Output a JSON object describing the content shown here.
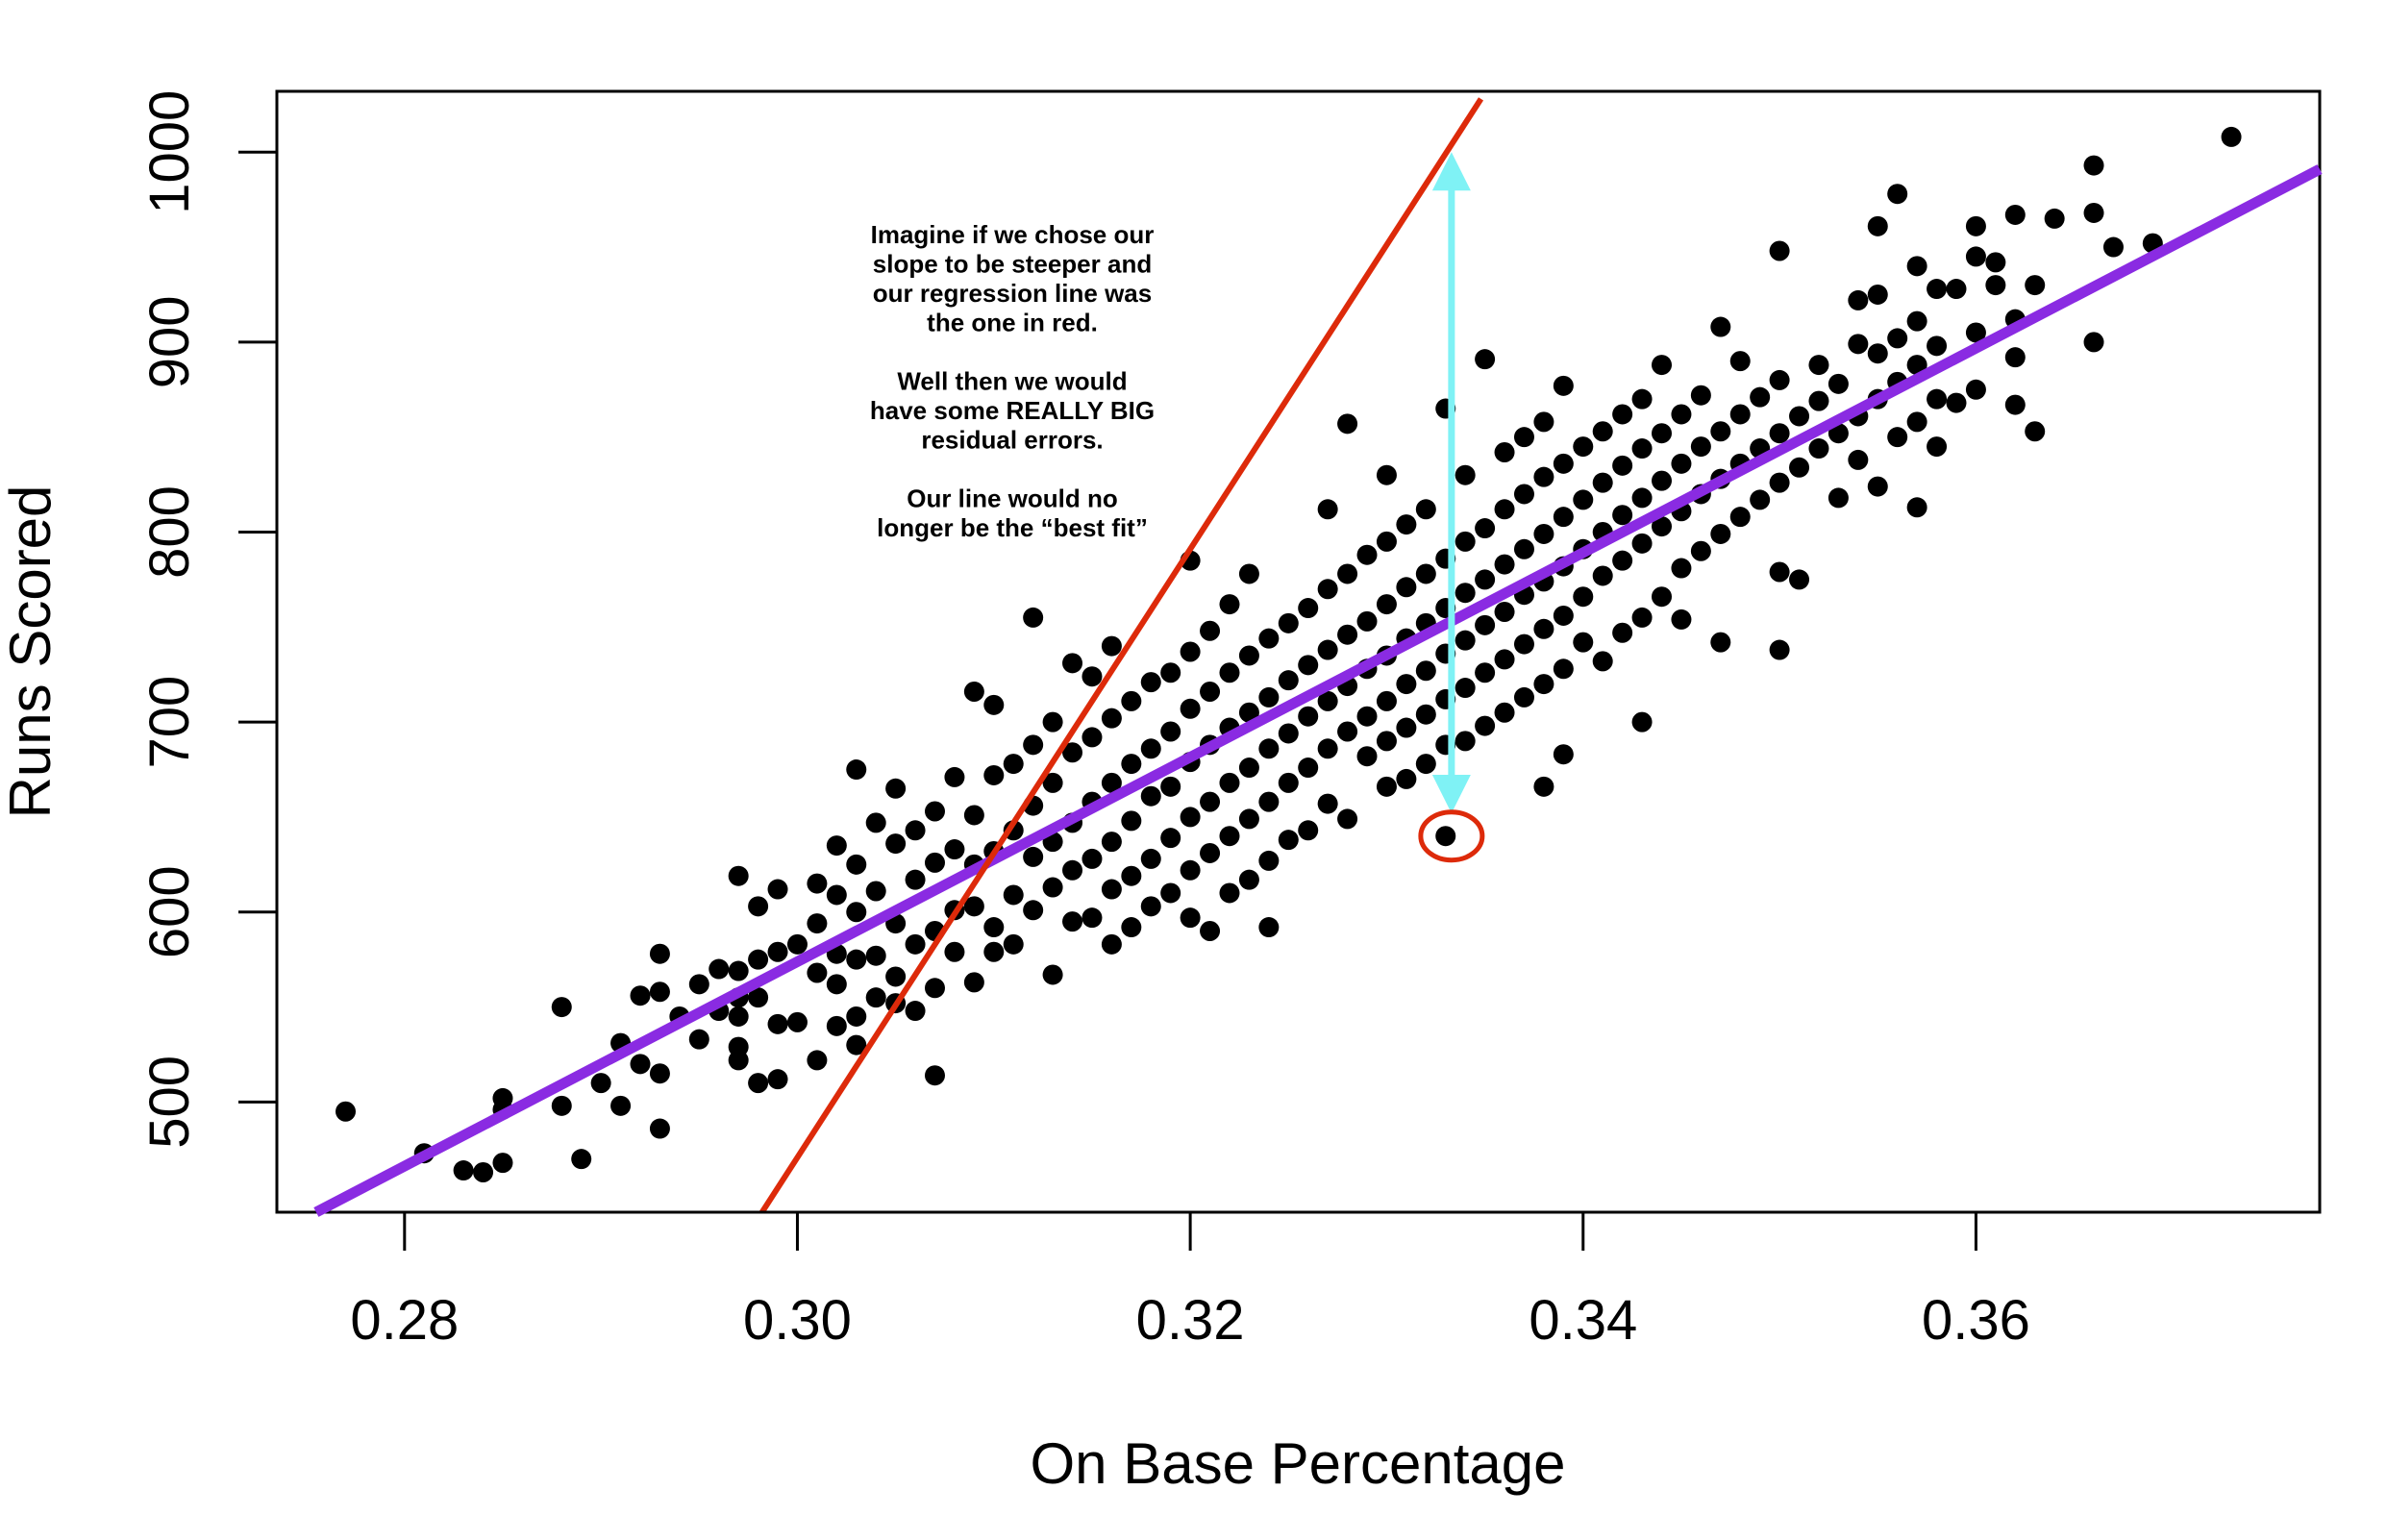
{
  "chart_data": {
    "type": "scatter",
    "title": "",
    "xlabel": "On Base Percentage",
    "ylabel": "Runs Scored",
    "xlim": [
      0.2735,
      0.3775
    ],
    "ylim": [
      442,
      1032
    ],
    "x_ticks": [
      {
        "value": 0.28,
        "label": "0.28"
      },
      {
        "value": 0.3,
        "label": "0.30"
      },
      {
        "value": 0.32,
        "label": "0.32"
      },
      {
        "value": 0.34,
        "label": "0.34"
      },
      {
        "value": 0.36,
        "label": "0.36"
      }
    ],
    "y_ticks": [
      {
        "value": 500,
        "label": "500"
      },
      {
        "value": 600,
        "label": "600"
      },
      {
        "value": 700,
        "label": "700"
      },
      {
        "value": 800,
        "label": "800"
      },
      {
        "value": 900,
        "label": "900"
      },
      {
        "value": 1000,
        "label": "1000"
      }
    ],
    "grid": false,
    "colors": {
      "points": "#000000",
      "best_fit_line": "#8a2be2",
      "steep_line": "#dd2a0a",
      "residual_arrow": "#7ff2f5",
      "highlight_circle": "#dd2a0a"
    },
    "points": [
      [
        0.277,
        495
      ],
      [
        0.281,
        473
      ],
      [
        0.283,
        464
      ],
      [
        0.284,
        463
      ],
      [
        0.285,
        468
      ],
      [
        0.285,
        496
      ],
      [
        0.285,
        502
      ],
      [
        0.288,
        498
      ],
      [
        0.288,
        550
      ],
      [
        0.289,
        470
      ],
      [
        0.29,
        510
      ],
      [
        0.291,
        498
      ],
      [
        0.291,
        531
      ],
      [
        0.292,
        520
      ],
      [
        0.292,
        556
      ],
      [
        0.293,
        486
      ],
      [
        0.293,
        515
      ],
      [
        0.293,
        558
      ],
      [
        0.293,
        578
      ],
      [
        0.294,
        545
      ],
      [
        0.295,
        533
      ],
      [
        0.295,
        562
      ],
      [
        0.296,
        548
      ],
      [
        0.296,
        570
      ],
      [
        0.297,
        522
      ],
      [
        0.297,
        529
      ],
      [
        0.297,
        545
      ],
      [
        0.297,
        555
      ],
      [
        0.297,
        569
      ],
      [
        0.297,
        619
      ],
      [
        0.298,
        510
      ],
      [
        0.298,
        555
      ],
      [
        0.298,
        575
      ],
      [
        0.298,
        603
      ],
      [
        0.299,
        512
      ],
      [
        0.299,
        541
      ],
      [
        0.299,
        579
      ],
      [
        0.299,
        612
      ],
      [
        0.3,
        542
      ],
      [
        0.3,
        583
      ],
      [
        0.301,
        522
      ],
      [
        0.301,
        568
      ],
      [
        0.301,
        594
      ],
      [
        0.301,
        615
      ],
      [
        0.302,
        540
      ],
      [
        0.302,
        562
      ],
      [
        0.302,
        578
      ],
      [
        0.302,
        609
      ],
      [
        0.302,
        635
      ],
      [
        0.303,
        530
      ],
      [
        0.303,
        545
      ],
      [
        0.303,
        575
      ],
      [
        0.303,
        600
      ],
      [
        0.303,
        625
      ],
      [
        0.303,
        675
      ],
      [
        0.304,
        555
      ],
      [
        0.304,
        577
      ],
      [
        0.304,
        611
      ],
      [
        0.304,
        647
      ],
      [
        0.305,
        552
      ],
      [
        0.305,
        566
      ],
      [
        0.305,
        594
      ],
      [
        0.305,
        636
      ],
      [
        0.305,
        665
      ],
      [
        0.306,
        548
      ],
      [
        0.306,
        583
      ],
      [
        0.306,
        617
      ],
      [
        0.306,
        643
      ],
      [
        0.307,
        514
      ],
      [
        0.307,
        560
      ],
      [
        0.307,
        590
      ],
      [
        0.307,
        626
      ],
      [
        0.307,
        653
      ],
      [
        0.308,
        579
      ],
      [
        0.308,
        601
      ],
      [
        0.308,
        633
      ],
      [
        0.308,
        671
      ],
      [
        0.309,
        563
      ],
      [
        0.309,
        603
      ],
      [
        0.309,
        625
      ],
      [
        0.309,
        651
      ],
      [
        0.309,
        716
      ],
      [
        0.31,
        579
      ],
      [
        0.31,
        592
      ],
      [
        0.31,
        632
      ],
      [
        0.31,
        672
      ],
      [
        0.31,
        709
      ],
      [
        0.311,
        583
      ],
      [
        0.311,
        609
      ],
      [
        0.311,
        643
      ],
      [
        0.311,
        678
      ],
      [
        0.312,
        601
      ],
      [
        0.312,
        629
      ],
      [
        0.312,
        656
      ],
      [
        0.312,
        688
      ],
      [
        0.312,
        755
      ],
      [
        0.313,
        567
      ],
      [
        0.313,
        613
      ],
      [
        0.313,
        637
      ],
      [
        0.313,
        668
      ],
      [
        0.313,
        700
      ],
      [
        0.314,
        595
      ],
      [
        0.314,
        622
      ],
      [
        0.314,
        647
      ],
      [
        0.314,
        684
      ],
      [
        0.314,
        731
      ],
      [
        0.315,
        597
      ],
      [
        0.315,
        628
      ],
      [
        0.315,
        658
      ],
      [
        0.315,
        692
      ],
      [
        0.315,
        724
      ],
      [
        0.316,
        583
      ],
      [
        0.316,
        612
      ],
      [
        0.316,
        637
      ],
      [
        0.316,
        668
      ],
      [
        0.316,
        702
      ],
      [
        0.316,
        740
      ],
      [
        0.317,
        592
      ],
      [
        0.317,
        619
      ],
      [
        0.317,
        648
      ],
      [
        0.317,
        678
      ],
      [
        0.317,
        711
      ],
      [
        0.318,
        603
      ],
      [
        0.318,
        628
      ],
      [
        0.318,
        661
      ],
      [
        0.318,
        686
      ],
      [
        0.318,
        721
      ],
      [
        0.319,
        610
      ],
      [
        0.319,
        639
      ],
      [
        0.319,
        666
      ],
      [
        0.319,
        695
      ],
      [
        0.319,
        726
      ],
      [
        0.32,
        597
      ],
      [
        0.32,
        622
      ],
      [
        0.32,
        650
      ],
      [
        0.32,
        679
      ],
      [
        0.32,
        707
      ],
      [
        0.32,
        737
      ],
      [
        0.32,
        785
      ],
      [
        0.321,
        590
      ],
      [
        0.321,
        631
      ],
      [
        0.321,
        658
      ],
      [
        0.321,
        688
      ],
      [
        0.321,
        716
      ],
      [
        0.321,
        748
      ],
      [
        0.322,
        610
      ],
      [
        0.322,
        640
      ],
      [
        0.322,
        668
      ],
      [
        0.322,
        697
      ],
      [
        0.322,
        726
      ],
      [
        0.322,
        762
      ],
      [
        0.323,
        617
      ],
      [
        0.323,
        649
      ],
      [
        0.323,
        676
      ],
      [
        0.323,
        705
      ],
      [
        0.323,
        735
      ],
      [
        0.323,
        778
      ],
      [
        0.324,
        592
      ],
      [
        0.324,
        627
      ],
      [
        0.324,
        658
      ],
      [
        0.324,
        686
      ],
      [
        0.324,
        713
      ],
      [
        0.324,
        744
      ],
      [
        0.325,
        638
      ],
      [
        0.325,
        668
      ],
      [
        0.325,
        694
      ],
      [
        0.325,
        722
      ],
      [
        0.325,
        752
      ],
      [
        0.326,
        643
      ],
      [
        0.326,
        676
      ],
      [
        0.326,
        703
      ],
      [
        0.326,
        730
      ],
      [
        0.326,
        760
      ],
      [
        0.327,
        657
      ],
      [
        0.327,
        686
      ],
      [
        0.327,
        711
      ],
      [
        0.327,
        738
      ],
      [
        0.327,
        770
      ],
      [
        0.327,
        812
      ],
      [
        0.328,
        649
      ],
      [
        0.328,
        695
      ],
      [
        0.328,
        719
      ],
      [
        0.328,
        746
      ],
      [
        0.328,
        778
      ],
      [
        0.328,
        857
      ],
      [
        0.329,
        682
      ],
      [
        0.329,
        703
      ],
      [
        0.329,
        728
      ],
      [
        0.329,
        753
      ],
      [
        0.329,
        788
      ],
      [
        0.33,
        666
      ],
      [
        0.33,
        690
      ],
      [
        0.33,
        711
      ],
      [
        0.33,
        735
      ],
      [
        0.33,
        762
      ],
      [
        0.33,
        795
      ],
      [
        0.33,
        830
      ],
      [
        0.331,
        670
      ],
      [
        0.331,
        697
      ],
      [
        0.331,
        720
      ],
      [
        0.331,
        744
      ],
      [
        0.331,
        771
      ],
      [
        0.331,
        804
      ],
      [
        0.332,
        678
      ],
      [
        0.332,
        704
      ],
      [
        0.332,
        727
      ],
      [
        0.332,
        752
      ],
      [
        0.332,
        778
      ],
      [
        0.332,
        812
      ],
      [
        0.333,
        640
      ],
      [
        0.333,
        688
      ],
      [
        0.333,
        712
      ],
      [
        0.333,
        736
      ],
      [
        0.333,
        760
      ],
      [
        0.333,
        786
      ],
      [
        0.333,
        865
      ],
      [
        0.334,
        690
      ],
      [
        0.334,
        718
      ],
      [
        0.334,
        743
      ],
      [
        0.334,
        768
      ],
      [
        0.334,
        795
      ],
      [
        0.334,
        830
      ],
      [
        0.335,
        698
      ],
      [
        0.335,
        726
      ],
      [
        0.335,
        751
      ],
      [
        0.335,
        775
      ],
      [
        0.335,
        802
      ],
      [
        0.335,
        891
      ],
      [
        0.336,
        705
      ],
      [
        0.336,
        733
      ],
      [
        0.336,
        758
      ],
      [
        0.336,
        783
      ],
      [
        0.336,
        812
      ],
      [
        0.336,
        842
      ],
      [
        0.337,
        713
      ],
      [
        0.337,
        741
      ],
      [
        0.337,
        767
      ],
      [
        0.337,
        791
      ],
      [
        0.337,
        820
      ],
      [
        0.337,
        850
      ],
      [
        0.338,
        666
      ],
      [
        0.338,
        720
      ],
      [
        0.338,
        749
      ],
      [
        0.338,
        774
      ],
      [
        0.338,
        799
      ],
      [
        0.338,
        829
      ],
      [
        0.338,
        858
      ],
      [
        0.339,
        683
      ],
      [
        0.339,
        728
      ],
      [
        0.339,
        756
      ],
      [
        0.339,
        782
      ],
      [
        0.339,
        808
      ],
      [
        0.339,
        836
      ],
      [
        0.339,
        877
      ],
      [
        0.34,
        742
      ],
      [
        0.34,
        766
      ],
      [
        0.34,
        791
      ],
      [
        0.34,
        817
      ],
      [
        0.34,
        845
      ],
      [
        0.341,
        732
      ],
      [
        0.341,
        777
      ],
      [
        0.341,
        800
      ],
      [
        0.341,
        826
      ],
      [
        0.341,
        853
      ],
      [
        0.342,
        747
      ],
      [
        0.342,
        785
      ],
      [
        0.342,
        809
      ],
      [
        0.342,
        835
      ],
      [
        0.342,
        862
      ],
      [
        0.343,
        755
      ],
      [
        0.343,
        794
      ],
      [
        0.343,
        818
      ],
      [
        0.343,
        844
      ],
      [
        0.343,
        870
      ],
      [
        0.343,
        700
      ],
      [
        0.344,
        766
      ],
      [
        0.344,
        803
      ],
      [
        0.344,
        827
      ],
      [
        0.344,
        852
      ],
      [
        0.344,
        888
      ],
      [
        0.345,
        754
      ],
      [
        0.345,
        781
      ],
      [
        0.345,
        811
      ],
      [
        0.345,
        836
      ],
      [
        0.345,
        862
      ],
      [
        0.346,
        790
      ],
      [
        0.346,
        820
      ],
      [
        0.346,
        845
      ],
      [
        0.346,
        872
      ],
      [
        0.347,
        742
      ],
      [
        0.347,
        799
      ],
      [
        0.347,
        828
      ],
      [
        0.347,
        853
      ],
      [
        0.347,
        908
      ],
      [
        0.348,
        808
      ],
      [
        0.348,
        836
      ],
      [
        0.348,
        862
      ],
      [
        0.348,
        890
      ],
      [
        0.349,
        817
      ],
      [
        0.349,
        844
      ],
      [
        0.349,
        871
      ],
      [
        0.35,
        738
      ],
      [
        0.35,
        779
      ],
      [
        0.35,
        826
      ],
      [
        0.35,
        852
      ],
      [
        0.35,
        880
      ],
      [
        0.35,
        948
      ],
      [
        0.351,
        775
      ],
      [
        0.351,
        834
      ],
      [
        0.351,
        861
      ],
      [
        0.352,
        844
      ],
      [
        0.352,
        869
      ],
      [
        0.352,
        888
      ],
      [
        0.353,
        818
      ],
      [
        0.353,
        852
      ],
      [
        0.353,
        878
      ],
      [
        0.354,
        838
      ],
      [
        0.354,
        861
      ],
      [
        0.354,
        899
      ],
      [
        0.354,
        922
      ],
      [
        0.355,
        824
      ],
      [
        0.355,
        870
      ],
      [
        0.355,
        894
      ],
      [
        0.355,
        925
      ],
      [
        0.355,
        961
      ],
      [
        0.356,
        850
      ],
      [
        0.356,
        879
      ],
      [
        0.356,
        902
      ],
      [
        0.356,
        978
      ],
      [
        0.357,
        813
      ],
      [
        0.357,
        858
      ],
      [
        0.357,
        888
      ],
      [
        0.357,
        911
      ],
      [
        0.357,
        940
      ],
      [
        0.358,
        845
      ],
      [
        0.358,
        870
      ],
      [
        0.358,
        898
      ],
      [
        0.358,
        928
      ],
      [
        0.359,
        868
      ],
      [
        0.359,
        928
      ],
      [
        0.36,
        875
      ],
      [
        0.36,
        905
      ],
      [
        0.36,
        945
      ],
      [
        0.36,
        961
      ],
      [
        0.361,
        930
      ],
      [
        0.361,
        942
      ],
      [
        0.362,
        867
      ],
      [
        0.362,
        892
      ],
      [
        0.362,
        912
      ],
      [
        0.362,
        967
      ],
      [
        0.363,
        853
      ],
      [
        0.363,
        930
      ],
      [
        0.364,
        965
      ],
      [
        0.366,
        900
      ],
      [
        0.366,
        968
      ],
      [
        0.366,
        993
      ],
      [
        0.367,
        950
      ],
      [
        0.369,
        952
      ],
      [
        0.373,
        1008
      ]
    ],
    "best_fit_line": {
      "x": [
        0.2755,
        0.3775
      ],
      "y": [
        442,
        991
      ]
    },
    "steep_line": {
      "x": [
        0.2982,
        0.3348
      ],
      "y": [
        442,
        1028
      ]
    },
    "residual_arrow": {
      "x": 0.3333,
      "y_from": 652,
      "y_to": 1000
    },
    "highlighted_point": {
      "x": 0.3333,
      "y": 640
    },
    "annotation": [
      "Imagine if we chose our",
      "slope to be steeper and",
      "our regression line was",
      "the one in red.",
      "",
      "Well then we would",
      "have some REALLY BIG",
      "residual errors.",
      "",
      "Our line would no",
      "longer be the “best fit”"
    ]
  }
}
